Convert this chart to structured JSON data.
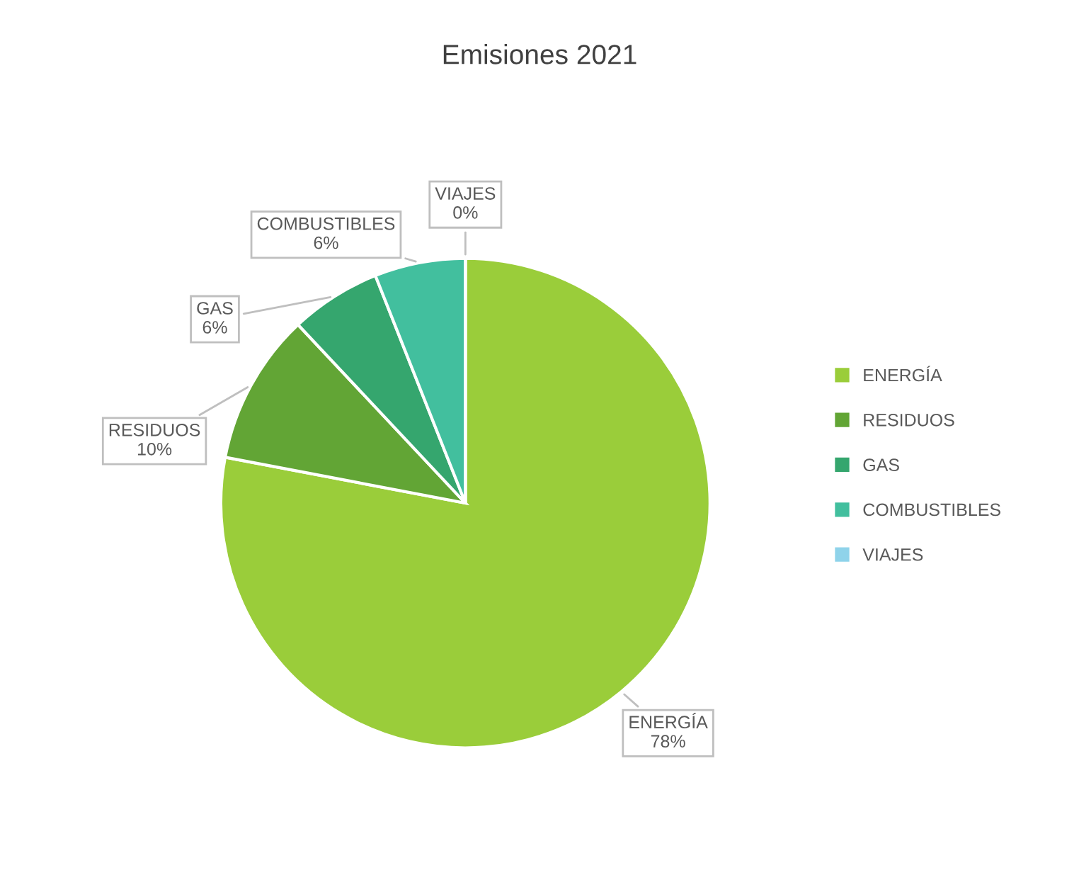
{
  "chart_data": {
    "type": "pie",
    "title": "Emisiones 2021",
    "categories": [
      "ENERGÍA",
      "RESIDUOS",
      "GAS",
      "COMBUSTIBLES",
      "VIAJES"
    ],
    "values": [
      78,
      10,
      6,
      6,
      0
    ],
    "value_labels": [
      "78%",
      "10%",
      "6%",
      "6%",
      "0%"
    ],
    "colors": [
      "#9acd3a",
      "#62a535",
      "#35a66e",
      "#42bf9e",
      "#8fd3ea"
    ],
    "legend": "right"
  }
}
